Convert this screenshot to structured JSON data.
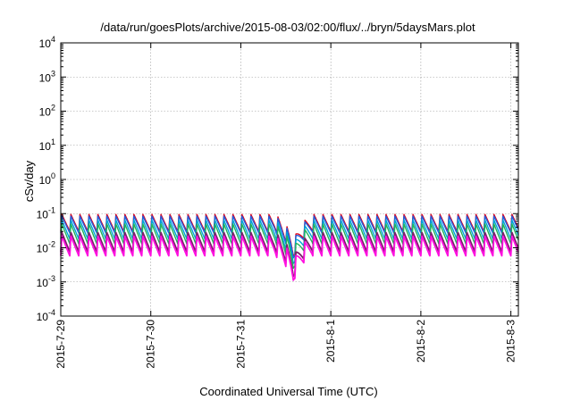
{
  "chart_data": {
    "type": "line",
    "title": "/data/run/goesPlots/archive/2015-08-03/02:00/flux/../bryn/5daysMars.plot",
    "xlabel": "Coordinated Universal Time (UTC)",
    "ylabel": "cSv/day",
    "y_scale": "log",
    "ylim": [
      0.0001,
      10000
    ],
    "xlim": [
      "2015-07-29",
      "2015-08-03 02:00"
    ],
    "grid": true,
    "x_ticks": [
      "2015-7-29",
      "2015-7-30",
      "2015-7-31",
      "2015-8-1",
      "2015-8-2",
      "2015-8-3"
    ],
    "y_ticks": [
      {
        "base": "10",
        "exp": "-4"
      },
      {
        "base": "10",
        "exp": "-3"
      },
      {
        "base": "10",
        "exp": "-2"
      },
      {
        "base": "10",
        "exp": "-1"
      },
      {
        "base": "10",
        "exp": "0"
      },
      {
        "base": "10",
        "exp": "1"
      },
      {
        "base": "10",
        "exp": "2"
      },
      {
        "base": "10",
        "exp": "3"
      },
      {
        "base": "10",
        "exp": "4"
      }
    ],
    "pattern": {
      "cycle_hours": 2.4,
      "dip": {
        "center": "2015-07-31 14:00",
        "width_hours": 5,
        "min_factor": 0.15
      }
    },
    "series": [
      {
        "color": "#e0001a",
        "peak": 0.095,
        "trough": 0.03
      },
      {
        "color": "#1f5fe0",
        "peak": 0.085,
        "trough": 0.027
      },
      {
        "color": "#00a4d8",
        "peak": 0.065,
        "trough": 0.018
      },
      {
        "color": "#21b35a",
        "peak": 0.05,
        "trough": 0.013
      },
      {
        "color": "#7a1f6a",
        "peak": 0.028,
        "trough": 0.0075
      },
      {
        "color": "#ff10e0",
        "peak": 0.022,
        "trough": 0.0058
      }
    ]
  }
}
